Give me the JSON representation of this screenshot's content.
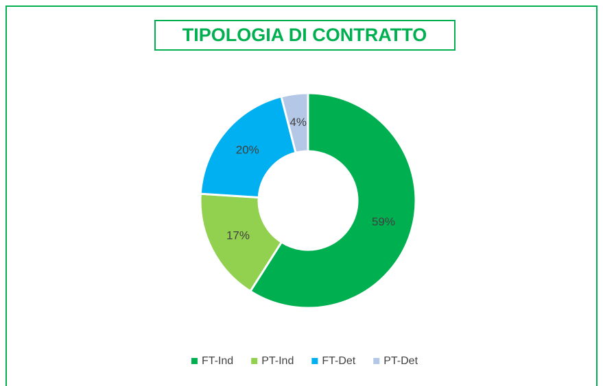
{
  "chart_data": {
    "type": "donut",
    "title": "TIPOLOGIA DI CONTRATTO",
    "categories": [
      "FT-Ind",
      "PT-Ind",
      "FT-Det",
      "PT-Det"
    ],
    "values": [
      59,
      17,
      20,
      4
    ],
    "value_labels": [
      "59%",
      "17%",
      "20%",
      "4%"
    ],
    "colors": [
      "#00b050",
      "#92d050",
      "#00b0f0",
      "#b4c7e7"
    ],
    "legend": "bottom"
  }
}
